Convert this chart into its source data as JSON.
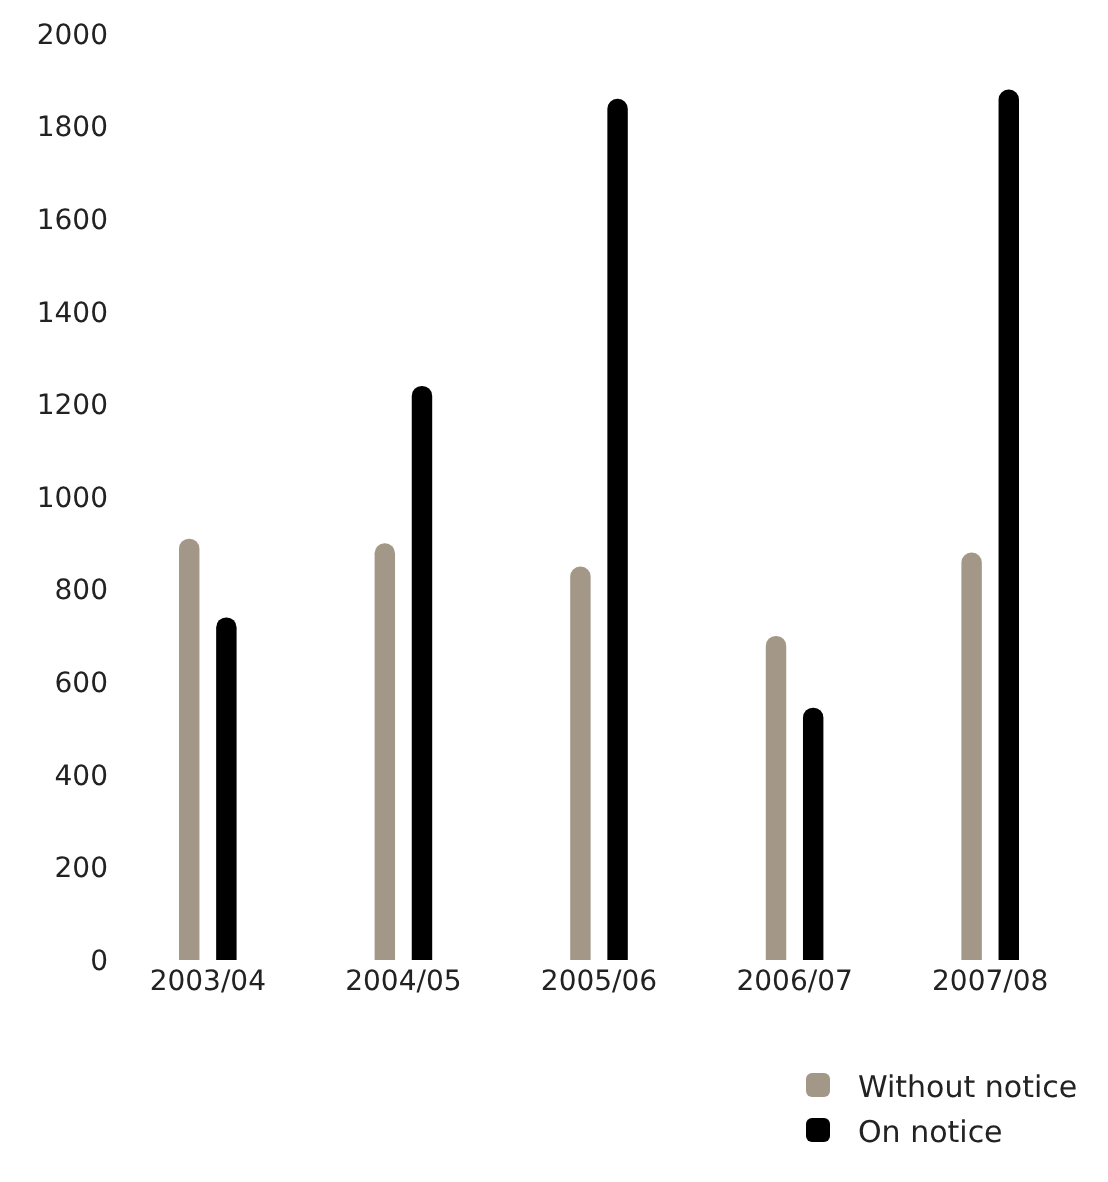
{
  "chart_data": {
    "type": "bar",
    "categories": [
      "2003/04",
      "2004/05",
      "2005/06",
      "2006/07",
      "2007/08"
    ],
    "series": [
      {
        "name": "Without notice",
        "color": "#a39787",
        "values": [
          910,
          900,
          850,
          700,
          880
        ]
      },
      {
        "name": "On notice",
        "color": "#000000",
        "values": [
          740,
          1240,
          1860,
          545,
          1880
        ]
      }
    ],
    "ylim": [
      0,
      2000
    ],
    "yticks": [
      0,
      200,
      400,
      600,
      800,
      1000,
      1200,
      1400,
      1600,
      1800,
      2000
    ],
    "legend": "bottom right"
  }
}
